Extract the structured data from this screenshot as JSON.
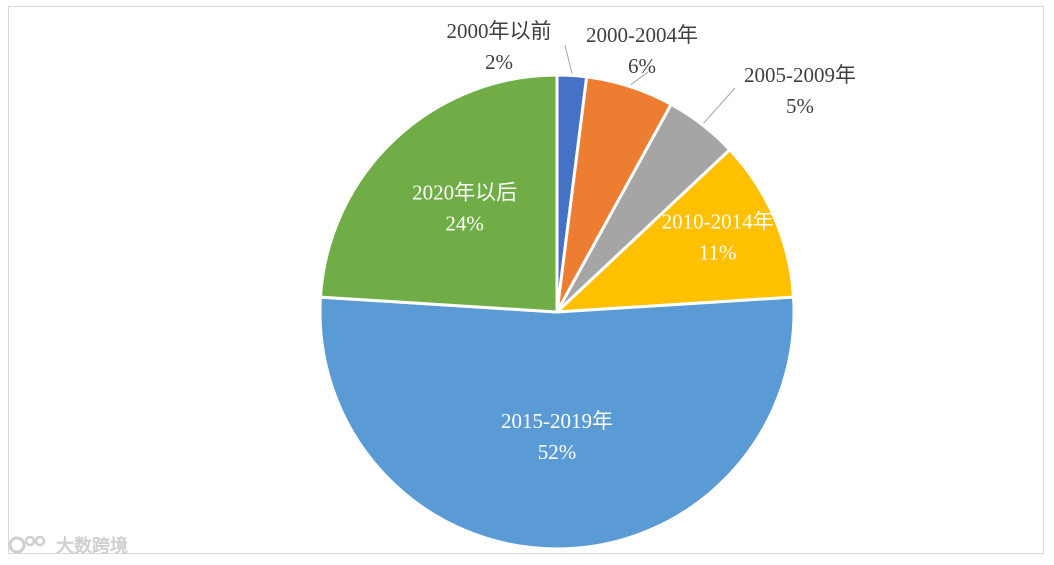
{
  "chart_data": {
    "type": "pie",
    "title": "",
    "categories": [
      "2000年以前",
      "2000-2004年",
      "2005-2009年",
      "2010-2014年",
      "2015-2019年",
      "2020年以后"
    ],
    "values": [
      2,
      6,
      5,
      11,
      52,
      24
    ],
    "value_labels": [
      "2%",
      "6%",
      "5%",
      "11%",
      "52%",
      "24%"
    ],
    "colors": [
      "#4472c4",
      "#ed7d31",
      "#a5a5a5",
      "#ffc000",
      "#5b9bd5",
      "#70ad47"
    ],
    "start_angle_deg": 0,
    "direction": "clockwise",
    "legend": "none",
    "label_placement": [
      "outside",
      "outside",
      "outside",
      "inside",
      "inside",
      "inside"
    ]
  },
  "watermark": {
    "text": "大数跨境"
  }
}
